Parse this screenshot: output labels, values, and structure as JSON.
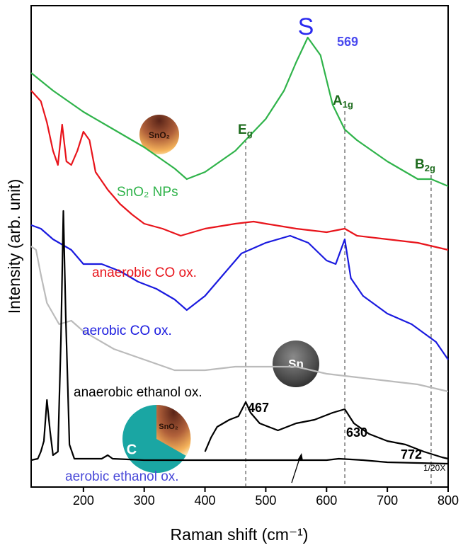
{
  "chart_data": {
    "type": "line",
    "xlabel": "Raman shift (cm⁻¹)",
    "ylabel": "Intensity (arb. unit)",
    "xlim": [
      114,
      800
    ],
    "xticks": [
      200,
      300,
      400,
      500,
      600,
      700,
      800
    ],
    "ylim": [
      -30,
      650
    ],
    "series": [
      {
        "name": "SnO₂ NPs",
        "color": "#2fb34a",
        "x": [
          114,
          150,
          200,
          250,
          300,
          350,
          370,
          400,
          450,
          500,
          530,
          550,
          569,
          590,
          610,
          630,
          650,
          700,
          750,
          772,
          800
        ],
        "values": [
          555,
          530,
          500,
          475,
          450,
          420,
          405,
          415,
          445,
          490,
          530,
          570,
          605,
          580,
          510,
          475,
          460,
          430,
          405,
          405,
          395
        ]
      },
      {
        "name": "anaerobic CO ox.",
        "color": "#e8141b",
        "x": [
          114,
          130,
          140,
          150,
          158,
          165,
          172,
          180,
          190,
          200,
          210,
          220,
          240,
          260,
          280,
          300,
          330,
          360,
          400,
          450,
          480,
          500,
          550,
          600,
          630,
          650,
          700,
          750,
          800
        ],
        "values": [
          530,
          515,
          485,
          445,
          425,
          482,
          430,
          425,
          445,
          472,
          460,
          415,
          390,
          370,
          355,
          342,
          335,
          325,
          335,
          342,
          345,
          342,
          335,
          330,
          335,
          325,
          320,
          315,
          305
        ]
      },
      {
        "name": "aerobic CO ox.",
        "color": "#1a1adf",
        "x": [
          114,
          130,
          150,
          180,
          200,
          230,
          260,
          290,
          320,
          350,
          370,
          400,
          430,
          460,
          500,
          540,
          570,
          600,
          615,
          630,
          640,
          660,
          700,
          740,
          780,
          800
        ],
        "values": [
          340,
          335,
          320,
          305,
          285,
          285,
          275,
          260,
          250,
          235,
          220,
          240,
          270,
          300,
          315,
          325,
          315,
          290,
          285,
          320,
          265,
          240,
          215,
          200,
          175,
          150
        ]
      },
      {
        "name": "anaerobic ethanol ox.",
        "color": "#bbbbbb",
        "x": [
          114,
          122,
          130,
          140,
          160,
          180,
          200,
          250,
          300,
          350,
          400,
          450,
          500,
          550,
          600,
          650,
          700,
          750,
          800
        ],
        "values": [
          310,
          305,
          270,
          230,
          200,
          205,
          190,
          165,
          150,
          135,
          135,
          140,
          140,
          140,
          130,
          125,
          120,
          115,
          105
        ]
      },
      {
        "name": "aerobic ethanol ox.",
        "color": "#000000",
        "x": [
          114,
          125,
          130,
          135,
          140,
          145,
          150,
          158,
          163,
          167,
          171,
          177,
          185,
          230,
          240,
          248,
          300,
          400,
          500,
          600,
          620,
          660,
          700,
          800
        ],
        "values": [
          8,
          10,
          20,
          35,
          93,
          50,
          15,
          20,
          180,
          360,
          210,
          30,
          10,
          10,
          15,
          10,
          8,
          8,
          8,
          8,
          10,
          8,
          5,
          3
        ]
      },
      {
        "color": "#000000",
        "x": [
          400,
          410,
          420,
          440,
          455,
          467,
          475,
          490,
          520,
          550,
          580,
          610,
          630,
          645,
          670,
          700,
          730,
          760,
          790,
          800
        ],
        "values": [
          20,
          40,
          55,
          65,
          70,
          90,
          75,
          60,
          50,
          60,
          65,
          75,
          80,
          60,
          45,
          35,
          30,
          20,
          12,
          10
        ]
      }
    ],
    "annotations": {
      "s_marker": "S",
      "peak_569": 569,
      "modes": [
        {
          "text": "E",
          "sub": "g"
        },
        {
          "text": "A",
          "sub": "1g"
        },
        {
          "text": "B",
          "sub": "2g"
        }
      ],
      "peaks": [
        467,
        630,
        772
      ],
      "scale_note": "1/20X",
      "sno2_particle": "SnO₂",
      "sn_particle": "Sn",
      "carbon": "C",
      "pie_sno2": "SnO₂"
    }
  }
}
